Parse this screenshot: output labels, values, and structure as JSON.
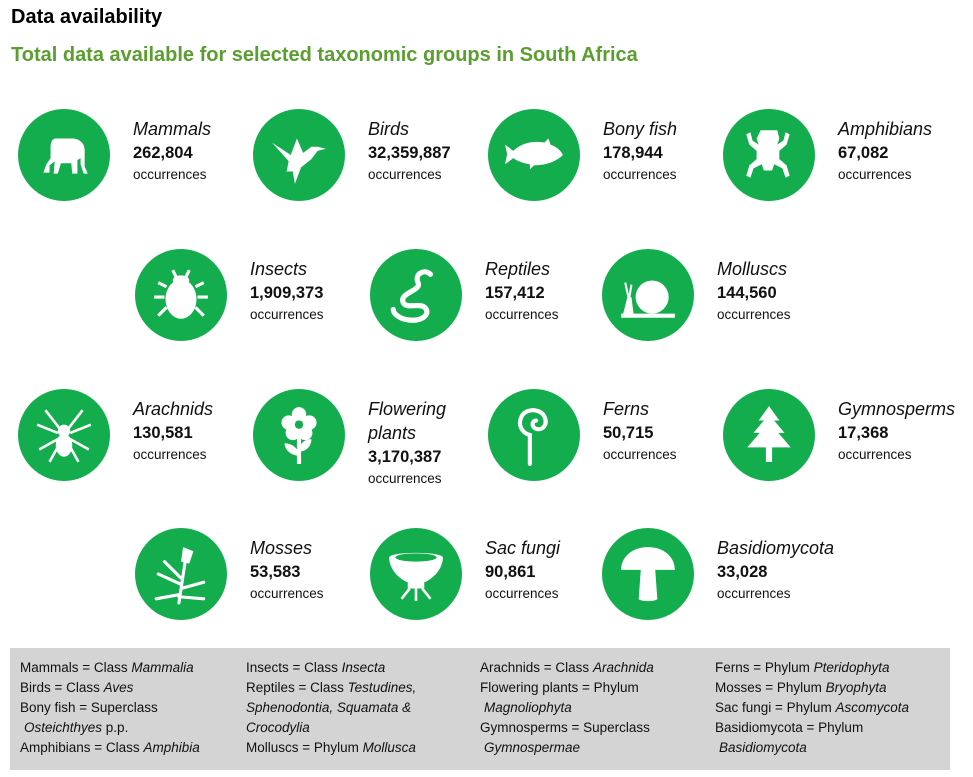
{
  "header": {
    "title": "Data availability",
    "subtitle": "Total data available for selected taxonomic groups in South Africa"
  },
  "accent": "#14ad4e",
  "groups": [
    {
      "name": "Mammals",
      "count": "262,804",
      "unit": "occurrences",
      "icon": "elephant-icon"
    },
    {
      "name": "Birds",
      "count": "32,359,887",
      "unit": "occurrences",
      "icon": "hummingbird-icon"
    },
    {
      "name": "Bony fish",
      "count": "178,944",
      "unit": "occurrences",
      "icon": "fish-icon"
    },
    {
      "name": "Amphibians",
      "count": "67,082",
      "unit": "occurrences",
      "icon": "frog-icon"
    },
    {
      "name": "Insects",
      "count": "1,909,373",
      "unit": "occurrences",
      "icon": "beetle-icon"
    },
    {
      "name": "Reptiles",
      "count": "157,412",
      "unit": "occurrences",
      "icon": "snake-icon"
    },
    {
      "name": "Molluscs",
      "count": "144,560",
      "unit": "occurrences",
      "icon": "snail-icon"
    },
    {
      "name": "Arachnids",
      "count": "130,581",
      "unit": "occurrences",
      "icon": "spider-icon"
    },
    {
      "name": "Flowering plants",
      "count": "3,170,387",
      "unit": "occurrences",
      "icon": "flower-icon"
    },
    {
      "name": "Ferns",
      "count": "50,715",
      "unit": "occurrences",
      "icon": "fern-icon"
    },
    {
      "name": "Gymnosperms",
      "count": "17,368",
      "unit": "occurrences",
      "icon": "conifer-icon"
    },
    {
      "name": "Mosses",
      "count": "53,583",
      "unit": "occurrences",
      "icon": "moss-icon"
    },
    {
      "name": "Sac fungi",
      "count": "90,861",
      "unit": "occurrences",
      "icon": "cup-fungus-icon"
    },
    {
      "name": "Basidiomycota",
      "count": "33,028",
      "unit": "occurrences",
      "icon": "mushroom-icon"
    }
  ],
  "legend": {
    "c1": [
      "Mammals = Class ",
      "Mammalia",
      "Birds = Class ",
      "Aves",
      "Bony fish = Superclass",
      "Osteichthyes",
      " p.p.",
      "Amphibians = Class ",
      "Amphibia"
    ],
    "c2": [
      "Insects = Class ",
      "Insecta",
      "Reptiles = Class ",
      "Testudines,",
      "Sphenodontia, Squamata &",
      "Crocodylia",
      "Molluscs = Phylum ",
      "Mollusca"
    ],
    "c3": [
      "Arachnids = Class ",
      "Arachnida",
      "Flowering plants = Phylum",
      "Magnoliophyta",
      "Gymnosperms = Superclass",
      "Gymnospermae"
    ],
    "c4": [
      "Ferns = Phylum ",
      "Pteridophyta",
      "Mosses = Phylum ",
      "Bryophyta",
      "Sac fungi = Phylum ",
      "Ascomycota",
      "Basidiomycota = Phylum",
      "Basidiomycota"
    ]
  }
}
